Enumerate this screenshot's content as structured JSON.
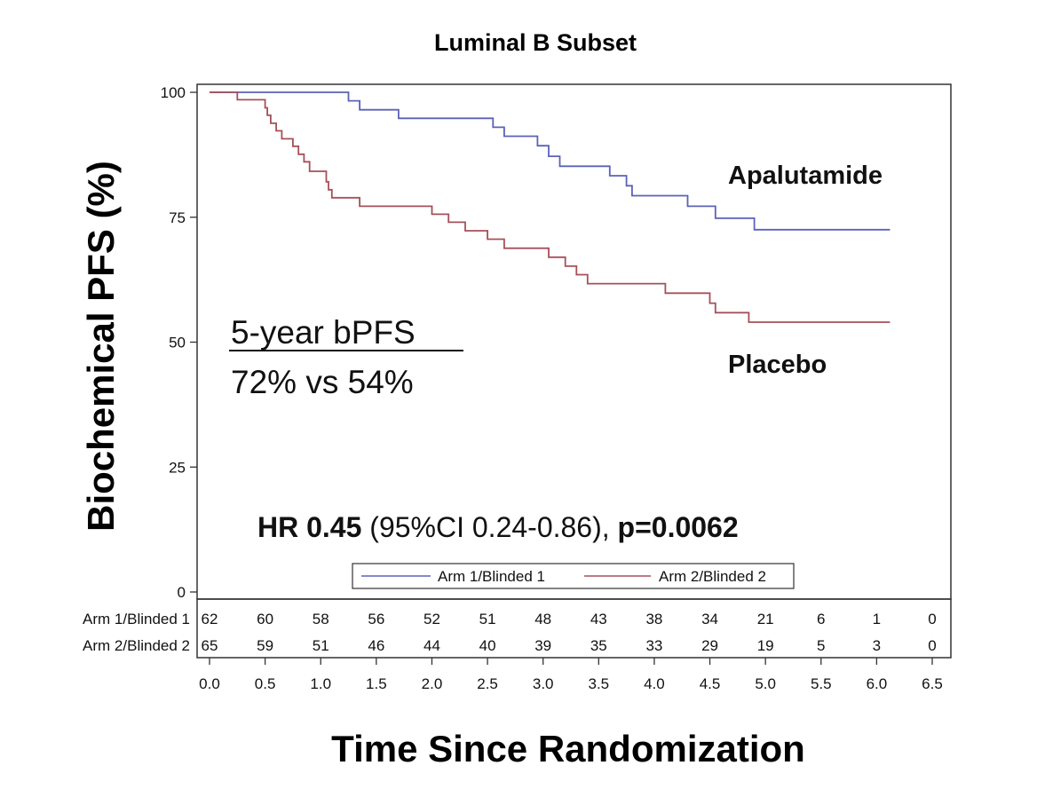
{
  "chart_data": {
    "type": "line",
    "step": true,
    "title": "Luminal B Subset",
    "xlabel": "Time Since Randomization",
    "ylabel": "Biochemical PFS (%)",
    "xlim": [
      0,
      6.5
    ],
    "ylim": [
      0,
      100
    ],
    "x_ticks": [
      "0.0",
      "0.5",
      "1.0",
      "1.5",
      "2.0",
      "2.5",
      "3.0",
      "3.5",
      "4.0",
      "4.5",
      "5.0",
      "5.5",
      "6.0",
      "6.5"
    ],
    "y_ticks": [
      "0",
      "25",
      "50",
      "75",
      "100"
    ],
    "series": [
      {
        "name": "Arm 1/Blinded 1",
        "label": "Apalutamide",
        "color": "#5b62b8",
        "points": [
          [
            0,
            100
          ],
          [
            1.25,
            100
          ],
          [
            1.25,
            98.3
          ],
          [
            1.35,
            98.3
          ],
          [
            1.35,
            96.5
          ],
          [
            1.7,
            96.5
          ],
          [
            1.7,
            94.8
          ],
          [
            2.55,
            94.8
          ],
          [
            2.55,
            93
          ],
          [
            2.65,
            93
          ],
          [
            2.65,
            91.2
          ],
          [
            2.95,
            91.2
          ],
          [
            2.95,
            89.3
          ],
          [
            3.05,
            89.3
          ],
          [
            3.05,
            87.2
          ],
          [
            3.15,
            87.2
          ],
          [
            3.15,
            85.2
          ],
          [
            3.6,
            85.2
          ],
          [
            3.6,
            83.3
          ],
          [
            3.75,
            83.3
          ],
          [
            3.75,
            81.3
          ],
          [
            3.8,
            81.3
          ],
          [
            3.8,
            79.3
          ],
          [
            4.3,
            79.3
          ],
          [
            4.3,
            77.2
          ],
          [
            4.55,
            77.2
          ],
          [
            4.55,
            74.8
          ],
          [
            4.9,
            74.8
          ],
          [
            4.9,
            72.5
          ],
          [
            6.12,
            72.5
          ]
        ]
      },
      {
        "name": "Arm 2/Blinded 2",
        "label": "Placebo",
        "color": "#a5505a",
        "points": [
          [
            0,
            100
          ],
          [
            0.25,
            100
          ],
          [
            0.25,
            98.5
          ],
          [
            0.5,
            98.5
          ],
          [
            0.5,
            96.9
          ],
          [
            0.52,
            96.9
          ],
          [
            0.52,
            95.4
          ],
          [
            0.55,
            95.4
          ],
          [
            0.55,
            93.8
          ],
          [
            0.6,
            93.8
          ],
          [
            0.6,
            92.3
          ],
          [
            0.65,
            92.3
          ],
          [
            0.65,
            90.7
          ],
          [
            0.75,
            90.7
          ],
          [
            0.75,
            89.2
          ],
          [
            0.8,
            89.2
          ],
          [
            0.8,
            87.6
          ],
          [
            0.85,
            87.6
          ],
          [
            0.85,
            86.1
          ],
          [
            0.9,
            86.1
          ],
          [
            0.9,
            84.2
          ],
          [
            1.05,
            84.2
          ],
          [
            1.05,
            82.1
          ],
          [
            1.07,
            82.1
          ],
          [
            1.07,
            80.5
          ],
          [
            1.1,
            80.5
          ],
          [
            1.1,
            78.9
          ],
          [
            1.35,
            78.9
          ],
          [
            1.35,
            77.2
          ],
          [
            2.0,
            77.2
          ],
          [
            2.0,
            75.6
          ],
          [
            2.15,
            75.6
          ],
          [
            2.15,
            74
          ],
          [
            2.3,
            74
          ],
          [
            2.3,
            72.3
          ],
          [
            2.5,
            72.3
          ],
          [
            2.5,
            70.6
          ],
          [
            2.65,
            70.6
          ],
          [
            2.65,
            68.8
          ],
          [
            3.05,
            68.8
          ],
          [
            3.05,
            67
          ],
          [
            3.2,
            67
          ],
          [
            3.2,
            65.2
          ],
          [
            3.3,
            65.2
          ],
          [
            3.3,
            63.5
          ],
          [
            3.4,
            63.5
          ],
          [
            3.4,
            61.7
          ],
          [
            4.1,
            61.7
          ],
          [
            4.1,
            59.8
          ],
          [
            4.5,
            59.8
          ],
          [
            4.5,
            57.8
          ],
          [
            4.55,
            57.8
          ],
          [
            4.55,
            55.9
          ],
          [
            4.85,
            55.9
          ],
          [
            4.85,
            54
          ],
          [
            6.12,
            54
          ]
        ]
      }
    ],
    "annotations": {
      "bpfs_heading": "5-year bPFS",
      "bpfs_values": "72% vs 54%",
      "hr_label": "HR ",
      "hr_value": "0.45",
      "hr_ci": " (95%CI 0.24-0.86), ",
      "hr_p": "p=0.0062"
    },
    "legend": {
      "placement": "bottom-center",
      "entries": [
        "Arm 1/Blinded 1",
        "Arm 2/Blinded 2"
      ]
    },
    "risk_table": {
      "times": [
        0,
        0.5,
        1.0,
        1.5,
        2.0,
        2.5,
        3.0,
        3.5,
        4.0,
        4.5,
        5.0,
        5.5,
        6.0,
        6.5
      ],
      "rows": [
        {
          "label": "Arm 1/Blinded 1",
          "values": [
            "62",
            "60",
            "58",
            "56",
            "52",
            "51",
            "48",
            "43",
            "38",
            "34",
            "21",
            "6",
            "1",
            "0"
          ]
        },
        {
          "label": "Arm 2/Blinded 2",
          "values": [
            "65",
            "59",
            "51",
            "46",
            "44",
            "40",
            "39",
            "35",
            "33",
            "29",
            "19",
            "5",
            "3",
            "0"
          ]
        }
      ]
    }
  }
}
